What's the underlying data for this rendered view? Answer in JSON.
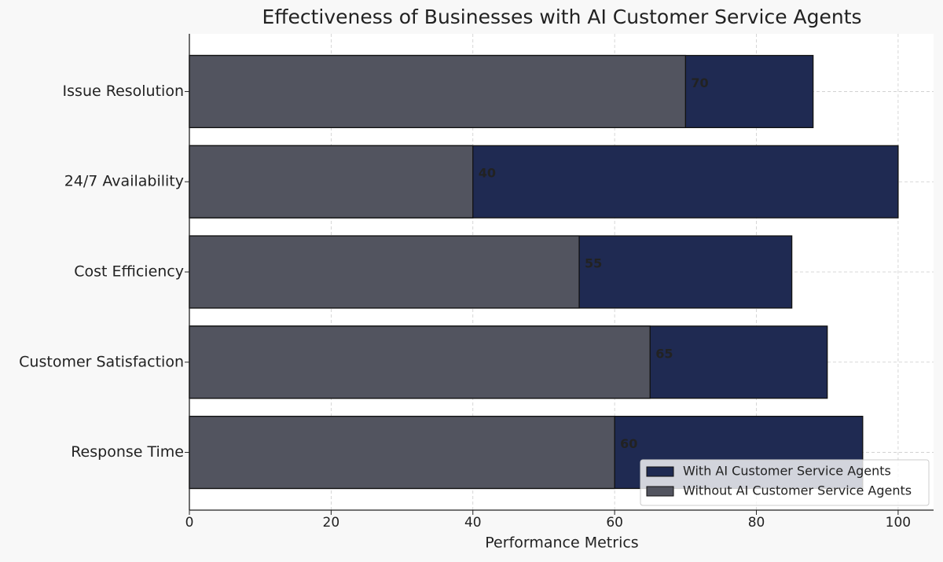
{
  "chart_data": {
    "type": "barh_overlap",
    "title": "Effectiveness of Businesses with AI Customer Service Agents",
    "xlabel": "Performance Metrics",
    "categories": [
      "Response Time",
      "Customer Satisfaction",
      "Cost Efficiency",
      "24/7 Availability",
      "Issue Resolution"
    ],
    "series": [
      {
        "name": "With AI Customer Service Agents",
        "color": "#1f2a52",
        "values": [
          95,
          90,
          85,
          100,
          88
        ]
      },
      {
        "name": "Without AI Customer Service Agents",
        "color": "#52545f",
        "values": [
          60,
          65,
          55,
          40,
          70
        ]
      }
    ],
    "data_labels_series": 1,
    "xlim": [
      0,
      105
    ],
    "xticks": [
      0,
      20,
      40,
      60,
      80,
      100
    ],
    "grid": true,
    "legend": "lower right"
  }
}
